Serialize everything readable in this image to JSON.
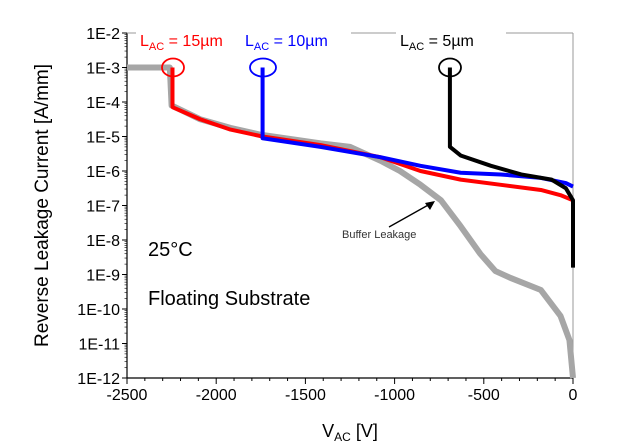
{
  "chart_data": {
    "type": "line",
    "xlabel_main": "V",
    "xlabel_sub": "AC",
    "xlabel_unit": " [V]",
    "ylabel": "Reverse Leakage Current [A/mm]",
    "xlim": [
      -2500,
      0
    ],
    "ylim": [
      1e-12,
      0.01
    ],
    "yscale": "log",
    "grid": false,
    "xticks": [
      "-2500",
      "-2000",
      "-1500",
      "-1000",
      "-500",
      "0"
    ],
    "yticks": [
      "1E-2",
      "1E-3",
      "1E-4",
      "1E-5",
      "1E-6",
      "1E-7",
      "1E-8",
      "1E-9",
      "1E-10",
      "1E-11",
      "1E-12"
    ],
    "annotations": {
      "temperature": "25°C",
      "substrate": "Floating Substrate",
      "buffer": "Buffer Leakage"
    },
    "series": [
      {
        "label_main": "L",
        "label_sub": "AC",
        "label_rest": " = 5µm",
        "color": "#000000",
        "x": [
          -690,
          -690,
          -630,
          -460,
          -290,
          -120,
          -40,
          0,
          0
        ],
        "log10y": [
          -3.0,
          -5.3,
          -5.55,
          -5.85,
          -6.1,
          -6.25,
          -6.5,
          -6.85,
          -8.8
        ]
      },
      {
        "label_main": "L",
        "label_sub": "AC",
        "label_rest": " = 10µm",
        "color": "#0000ff",
        "x": [
          -1740,
          -1740,
          -1415,
          -1080,
          -855,
          -630,
          -405,
          -180,
          -40,
          0
        ],
        "log10y": [
          -3.0,
          -5.05,
          -5.3,
          -5.6,
          -5.85,
          -6.05,
          -6.1,
          -6.2,
          -6.35,
          -6.45
        ]
      },
      {
        "label_main": "L",
        "label_sub": "AC",
        "label_rest": " = 15µm",
        "color": "#ff0000",
        "x": [
          -2245,
          -2245,
          -2090,
          -1920,
          -1740,
          -1415,
          -1080,
          -855,
          -630,
          -405,
          -180,
          -70,
          0
        ],
        "log10y": [
          -3.0,
          -4.15,
          -4.5,
          -4.8,
          -5.0,
          -5.25,
          -5.6,
          -6.0,
          -6.25,
          -6.4,
          -6.55,
          -6.7,
          -6.85
        ]
      },
      {
        "color": "#a6a6a6",
        "x": [
          -2500,
          -2260,
          -2250,
          -2090,
          -1920,
          -1750,
          -1415,
          -1250,
          -1080,
          -970,
          -855,
          -740,
          -630,
          -520,
          -435,
          -350,
          -180,
          -70,
          -20,
          0
        ],
        "log10y": [
          -3.0,
          -3.0,
          -4.1,
          -4.5,
          -4.75,
          -4.95,
          -5.2,
          -5.3,
          -5.7,
          -6.0,
          -6.4,
          -6.85,
          -7.6,
          -8.4,
          -8.9,
          -9.1,
          -9.45,
          -10.2,
          -10.9,
          -12.0
        ]
      }
    ]
  }
}
